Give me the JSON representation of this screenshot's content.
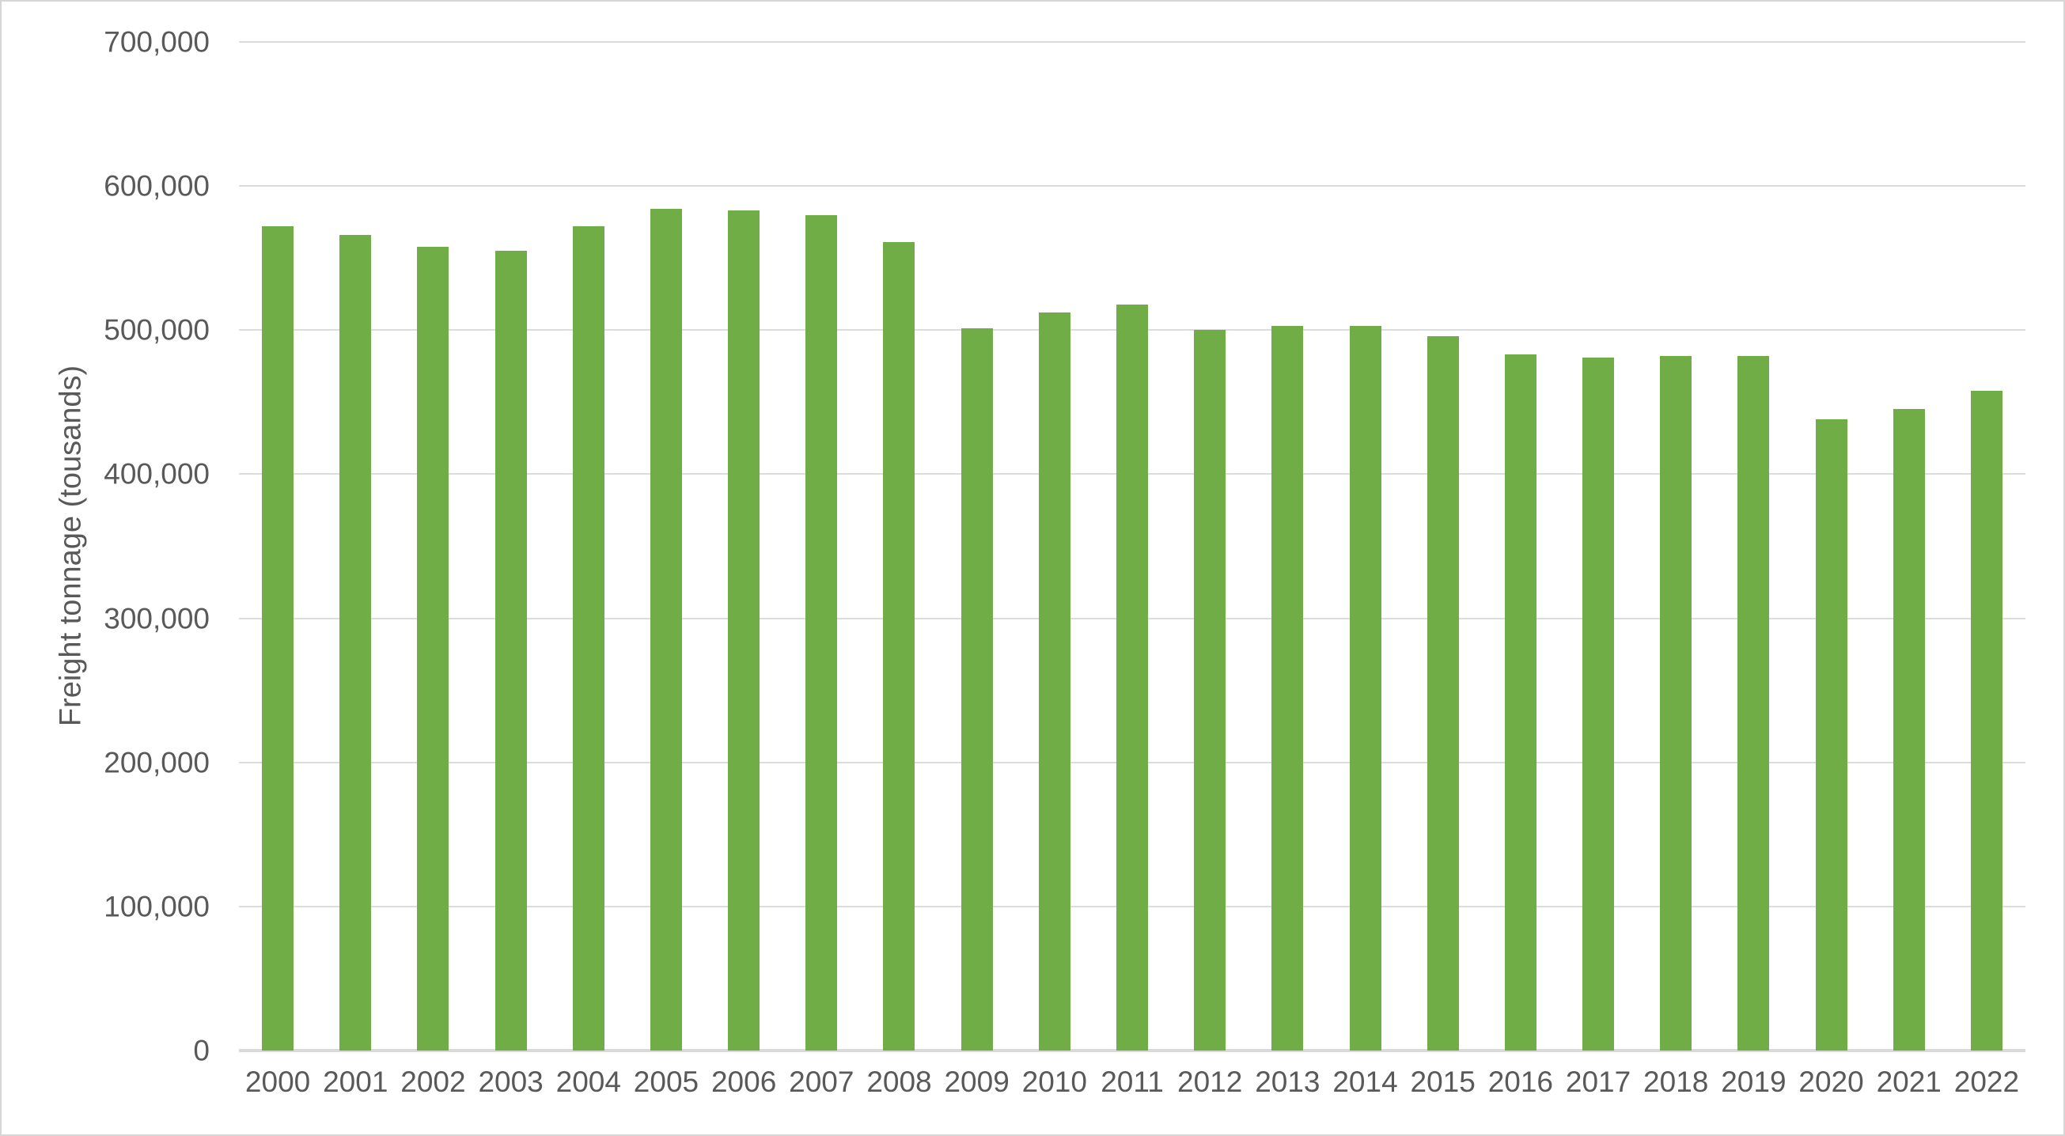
{
  "chart_data": {
    "type": "bar",
    "title": "",
    "xlabel": "",
    "ylabel": "Freight tonnage (tousands)",
    "categories": [
      "2000",
      "2001",
      "2002",
      "2003",
      "2004",
      "2005",
      "2006",
      "2007",
      "2008",
      "2009",
      "2010",
      "2011",
      "2012",
      "2013",
      "2014",
      "2015",
      "2016",
      "2017",
      "2018",
      "2019",
      "2020",
      "2021",
      "2022"
    ],
    "values": [
      572000,
      566000,
      558000,
      555000,
      572000,
      584000,
      583000,
      580000,
      561000,
      501000,
      512000,
      518000,
      500000,
      503000,
      503000,
      496000,
      483000,
      481000,
      482000,
      482000,
      438000,
      445000,
      458000
    ],
    "ylim": [
      0,
      700000
    ],
    "yticks": {
      "values": [
        0,
        100000,
        200000,
        300000,
        400000,
        500000,
        600000,
        700000
      ],
      "labels": [
        "0",
        "100,000",
        "200,000",
        "300,000",
        "400,000",
        "500,000",
        "600,000",
        "700,000"
      ]
    },
    "grid": true,
    "legend": false,
    "colors": {
      "bar": "#70ad47",
      "text": "#595959",
      "gridline": "#dcdcdc",
      "axis_line": "#d9d9d9",
      "border": "#d6d6d6",
      "background": "#ffffff"
    }
  }
}
